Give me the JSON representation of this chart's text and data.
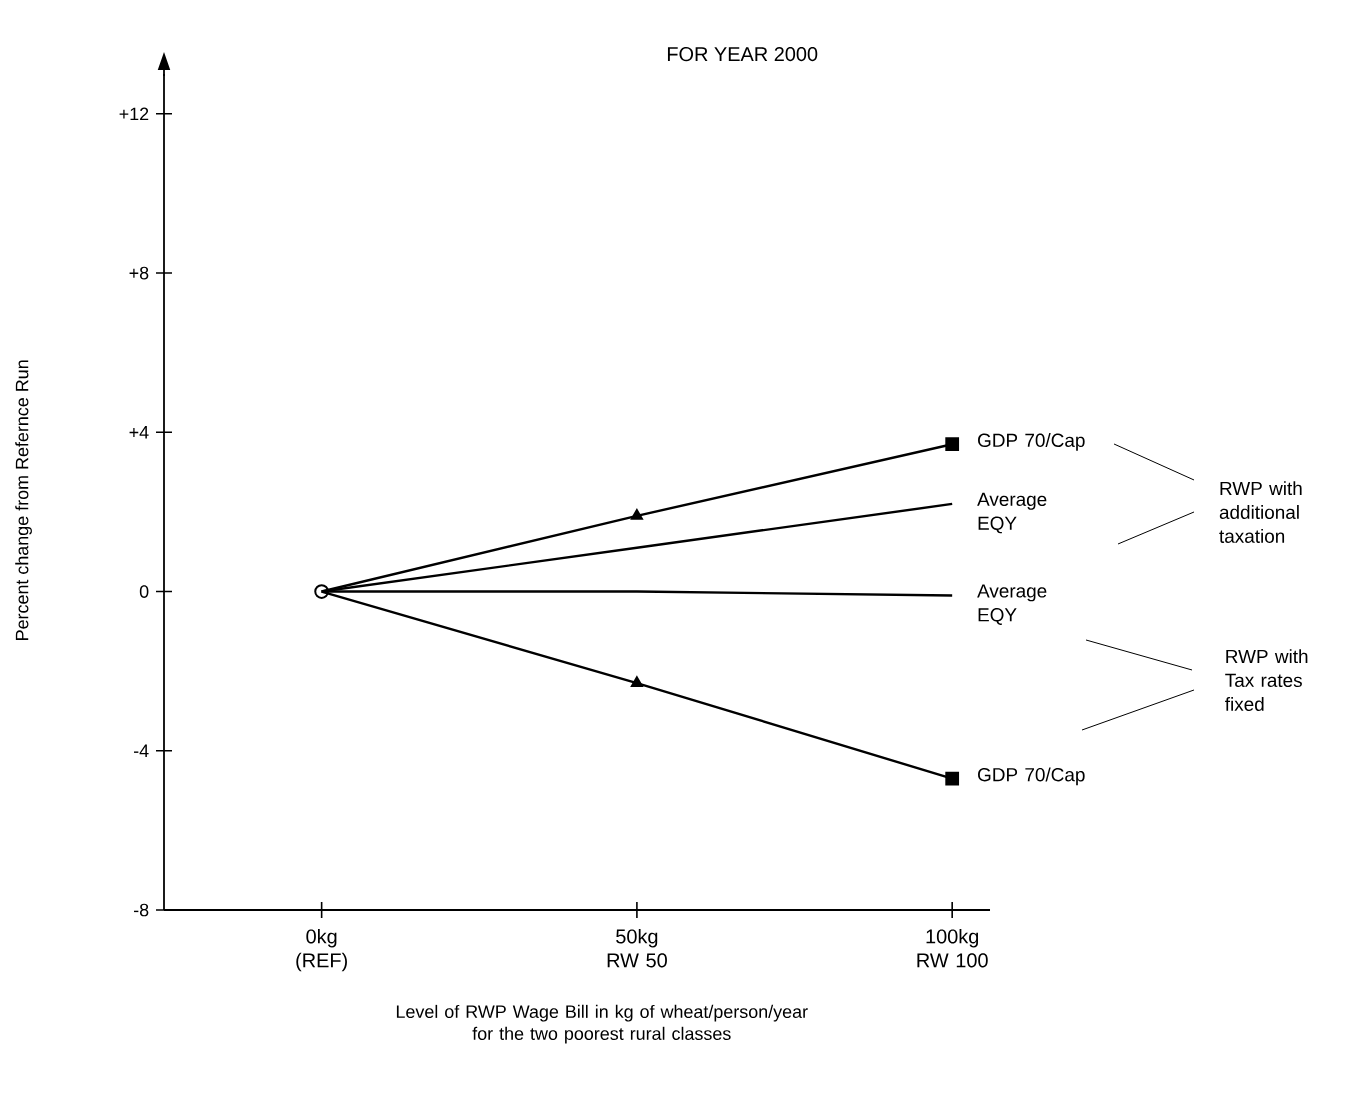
{
  "chart_data": {
    "type": "line",
    "title": "FOR YEAR 2000",
    "xlabel": "Level of RWP Wage Bill in kg of wheat/person/year for the two poorest rural classes",
    "ylabel": "Percent change from Refernce Run",
    "categories": [
      "0kg (REF)",
      "50kg RW 50",
      "100kg RW 100"
    ],
    "series": [
      {
        "name": "GDP 70/Cap",
        "color": "#000000",
        "marker": "none",
        "values": [
          0,
          1.9,
          3.7
        ]
      },
      {
        "name": "Average EQY",
        "color": "#000000",
        "marker": "none",
        "values": [
          0,
          1.1,
          2.2
        ]
      },
      {
        "name": "Average EQY",
        "color": "#000000",
        "marker": "none",
        "values": [
          0,
          0,
          -0.1
        ]
      },
      {
        "name": "GDP 70/Cap",
        "color": "#000000",
        "marker": "none",
        "values": [
          0,
          -2.3,
          -4.7
        ]
      },
      {
        "color": "#000000",
        "type": "scatter",
        "marker": "circle",
        "x": [
          "0kg (REF)"
        ],
        "values": [
          0
        ]
      },
      {
        "color": "#000000",
        "type": "scatter",
        "marker": "triangle",
        "x": [
          "50kg RW 50",
          "50kg RW 50"
        ],
        "values": [
          1.9,
          -2.3
        ]
      },
      {
        "color": "#000000",
        "type": "scatter",
        "marker": "square",
        "x": [
          "100kg RW 100",
          "100kg RW 100"
        ],
        "values": [
          3.7,
          -4.7
        ]
      }
    ],
    "ylim": [
      -8,
      13
    ],
    "yticks": [
      {
        "value": -8,
        "label": "-8"
      },
      {
        "value": -4,
        "label": "-4"
      },
      0,
      {
        "value": 4,
        "label": "+4"
      },
      {
        "value": 8,
        "label": "+8"
      },
      {
        "value": 12,
        "label": "+12"
      }
    ],
    "annotations": [
      "RWP with additional taxation",
      "RWP with Tax rates fixed"
    ],
    "grid": false,
    "legend": false
  }
}
